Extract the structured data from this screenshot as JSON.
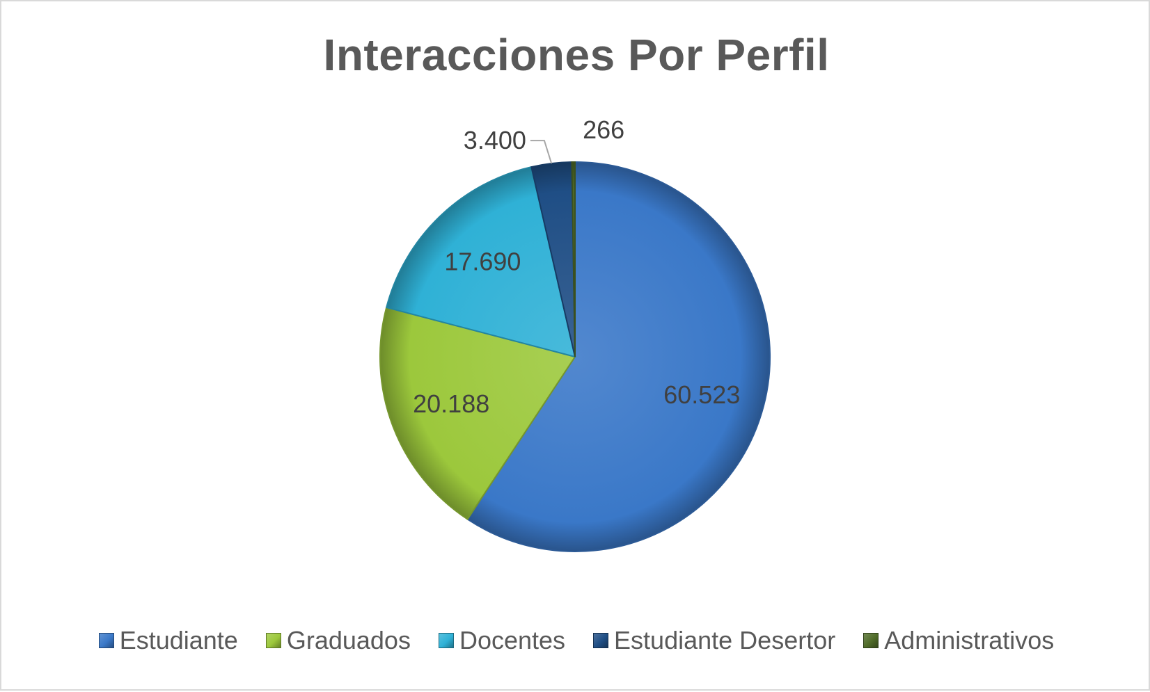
{
  "chart_data": {
    "type": "pie",
    "title": "Interacciones Por Perfil",
    "categories": [
      "Estudiante",
      "Graduados",
      "Docentes",
      "Estudiante Desertor",
      "Administrativos"
    ],
    "values": [
      60523,
      20188,
      17690,
      3400,
      266
    ],
    "data_labels": [
      "60.523",
      "20.188",
      "17.690",
      "3.400",
      "266"
    ],
    "colors": [
      "#3a78c8",
      "#9cc83c",
      "#2fb1d6",
      "#1f4e85",
      "#4f6b28"
    ],
    "legend_position": "bottom"
  }
}
